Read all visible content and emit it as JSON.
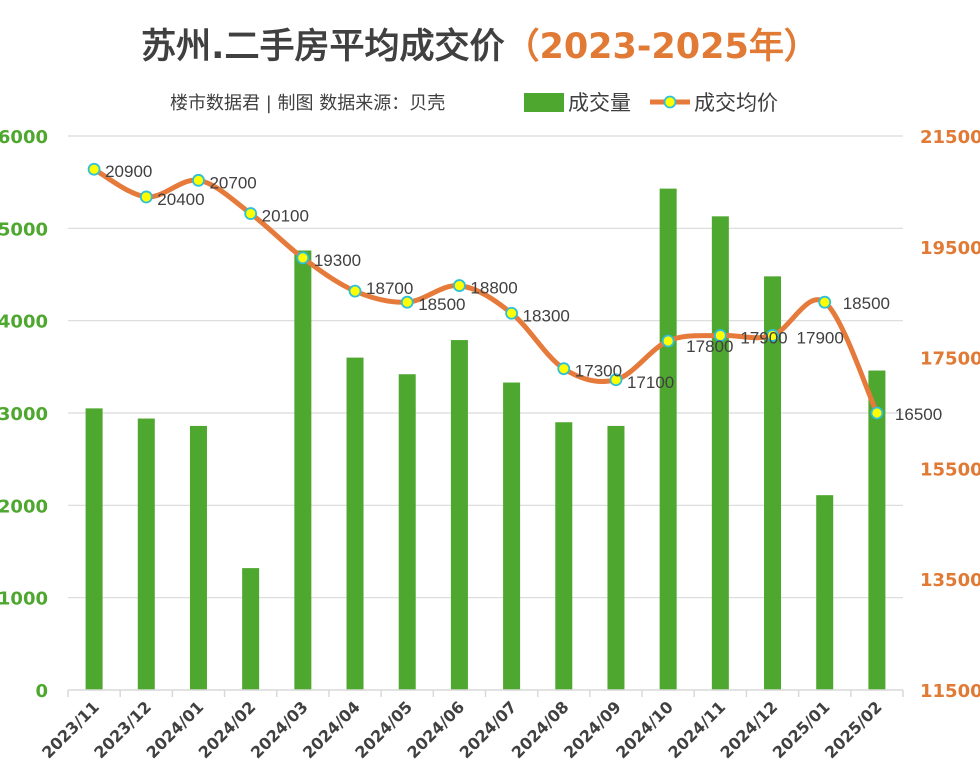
{
  "title": {
    "main": "苏州.二手房平均成交价",
    "paren_open": "（",
    "years": "2023-2025年",
    "paren_close": "）"
  },
  "subtitle": "楼市数据君 | 制图   数据来源：贝壳",
  "colors": {
    "title": "#404040",
    "years": "#e07a35",
    "bar": "#4ea72e",
    "line": "#e57a3a",
    "marker_fill": "#ffff00",
    "marker_stroke": "#2ec0d8",
    "left_axis": "#4ea72e",
    "right_axis": "#e07a35",
    "grid": "#d9d9d9",
    "text": "#404040"
  },
  "chart_data": {
    "type": "bar+line",
    "categories": [
      "2023/11",
      "2023/12",
      "2024/01",
      "2024/02",
      "2024/03",
      "2024/04",
      "2024/05",
      "2024/06",
      "2024/07",
      "2024/08",
      "2024/09",
      "2024/10",
      "2024/11",
      "2024/12",
      "2025/01",
      "2025/02"
    ],
    "series": [
      {
        "name": "成交量",
        "type": "bar",
        "axis": "left",
        "values": [
          3050,
          2940,
          2860,
          1320,
          4760,
          3600,
          3420,
          3790,
          3330,
          2900,
          2860,
          5430,
          5130,
          4480,
          2110,
          3460
        ]
      },
      {
        "name": "成交均价",
        "type": "line",
        "axis": "right",
        "smooth": true,
        "values": [
          20900,
          20400,
          20700,
          20100,
          19300,
          18700,
          18500,
          18800,
          18300,
          17300,
          17100,
          17800,
          17900,
          17900,
          18500,
          16500
        ]
      }
    ],
    "y_left": {
      "min": 0,
      "max": 6000,
      "ticks": [
        "0",
        "1000",
        "2000",
        "3000",
        "4000",
        "5000",
        "6000"
      ]
    },
    "y_right": {
      "min": 11500,
      "max": 21500,
      "ticks": [
        "11500",
        "13500",
        "15500",
        "17500",
        "19500",
        "21500"
      ]
    },
    "grid": true,
    "legend_position": "top"
  }
}
